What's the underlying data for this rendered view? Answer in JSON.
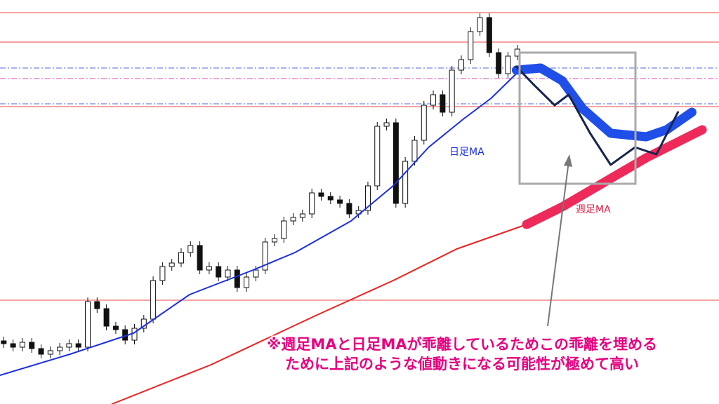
{
  "chart_data": {
    "type": "candlestick",
    "xlim": [
      -0.4,
      76.6
    ],
    "ylim": [
      0,
      576
    ],
    "hlines": [
      {
        "value": 558,
        "color": "#ee4444",
        "style": "solid"
      },
      {
        "value": 516,
        "color": "#ee4444",
        "style": "solid"
      },
      {
        "value": 479,
        "color": "#5566dd",
        "style": "dashdot"
      },
      {
        "value": 464,
        "color": "#dd44bb",
        "style": "dashdot"
      },
      {
        "value": 428,
        "color": "#5566dd",
        "style": "dashdot"
      },
      {
        "value": 424,
        "color": "#ee4444",
        "style": "solid"
      },
      {
        "value": 148,
        "color": "#ee4444",
        "style": "solid"
      }
    ],
    "candles": {
      "up_color": "#ffffff",
      "down_color": "#111111",
      "open": [
        90,
        86,
        81,
        88,
        79,
        71,
        76,
        81,
        86,
        81,
        146,
        136,
        111,
        106,
        91,
        108,
        121,
        176,
        196,
        201,
        216,
        226,
        191,
        196,
        181,
        191,
        166,
        181,
        191,
        231,
        236,
        261,
        266,
        271,
        301,
        296,
        291,
        286,
        271,
        276,
        311,
        396,
        401,
        286,
        346,
        376,
        426,
        441,
        416,
        476,
        491,
        531,
        551,
        501,
        471,
        496
      ],
      "high": [
        96,
        92,
        94,
        94,
        85,
        82,
        87,
        92,
        92,
        152,
        152,
        142,
        117,
        112,
        114,
        127,
        182,
        202,
        207,
        222,
        232,
        232,
        202,
        202,
        197,
        197,
        187,
        197,
        237,
        242,
        267,
        272,
        277,
        307,
        307,
        302,
        297,
        292,
        282,
        317,
        402,
        407,
        407,
        352,
        382,
        432,
        447,
        447,
        482,
        497,
        537,
        557,
        557,
        507,
        502,
        512
      ],
      "low": [
        80,
        75,
        75,
        73,
        65,
        65,
        70,
        75,
        75,
        75,
        130,
        105,
        100,
        85,
        85,
        102,
        115,
        170,
        190,
        195,
        210,
        185,
        185,
        175,
        175,
        160,
        160,
        175,
        185,
        225,
        230,
        255,
        260,
        265,
        290,
        285,
        280,
        265,
        265,
        270,
        305,
        390,
        280,
        280,
        340,
        370,
        420,
        410,
        410,
        470,
        485,
        525,
        495,
        465,
        465,
        490
      ],
      "close": [
        86,
        81,
        88,
        79,
        71,
        76,
        81,
        86,
        81,
        146,
        136,
        111,
        106,
        91,
        108,
        121,
        176,
        196,
        201,
        216,
        226,
        191,
        196,
        181,
        191,
        166,
        181,
        191,
        231,
        236,
        261,
        266,
        271,
        301,
        296,
        291,
        286,
        271,
        276,
        311,
        396,
        401,
        286,
        346,
        376,
        426,
        441,
        416,
        476,
        491,
        531,
        551,
        501,
        471,
        496,
        506
      ]
    },
    "series": [
      {
        "name": "日足MA",
        "color": "#1a2fe0",
        "width": 2,
        "x": [
          -0.4,
          7.1,
          13.9,
          19.9,
          26.7,
          31.2,
          37.2,
          41.7,
          45.5,
          49.2,
          52.2,
          54.9
        ],
        "values": [
          41,
          71,
          101,
          156,
          191,
          216,
          261,
          311,
          366,
          406,
          436,
          471
        ]
      },
      {
        "name": "週足MA",
        "color": "#ee2222",
        "width": 2,
        "x": [
          11.6,
          22.2,
          33.4,
          41.7,
          48.5,
          56.0
        ],
        "values": [
          0,
          56,
          126,
          176,
          221,
          256
        ]
      },
      {
        "color": "#1f4fe8",
        "width": 13,
        "x": [
          54.9,
          57.5,
          59.8,
          62.0,
          65.0,
          68.8,
          71.0,
          73.7
        ],
        "values": [
          476,
          479,
          461,
          421,
          386,
          381,
          391,
          416
        ]
      },
      {
        "color": "#ee2a5a",
        "width": 13,
        "x": [
          56.0,
          59.8,
          64.3,
          68.8,
          74.8
        ],
        "values": [
          256,
          281,
          316,
          351,
          391
        ]
      },
      {
        "color": "#17254f",
        "width": 3,
        "x": [
          54.9,
          56.7,
          59.0,
          60.5,
          62.8,
          65.0,
          67.6,
          69.9,
          72.2
        ],
        "values": [
          481,
          456,
          426,
          441,
          386,
          341,
          366,
          356,
          416
        ]
      }
    ],
    "annotation": [
      "※週足MAと日足MAが乖離しているためこの乖離を埋める",
      "ために上記のような値動きになる可能性が極めて高い"
    ]
  }
}
